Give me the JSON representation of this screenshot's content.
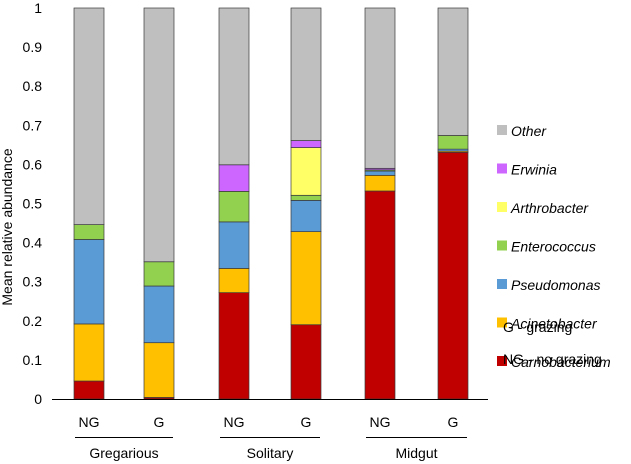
{
  "chart_data": {
    "type": "bar",
    "stacked": true,
    "title": "",
    "xlabel": "",
    "ylabel": "Mean relative abundance",
    "ylim": [
      0,
      1
    ],
    "yticks": [
      "0",
      "0.1",
      "0.2",
      "0.3",
      "0.4",
      "0.5",
      "0.6",
      "0.7",
      "0.8",
      "0.9",
      "1"
    ],
    "categories": [
      "NG",
      "G",
      "NG",
      "G",
      "NG",
      "G"
    ],
    "groups": [
      {
        "label": "Gregarious",
        "bars": [
          0,
          1
        ]
      },
      {
        "label": "Solitary",
        "bars": [
          2,
          3
        ]
      },
      {
        "label": "Midgut",
        "bars": [
          4,
          5
        ]
      }
    ],
    "series": [
      {
        "name": "Carnobacterium",
        "color": "#c00000",
        "values": [
          0.046,
          0.004,
          0.272,
          0.19,
          0.532,
          0.631
        ]
      },
      {
        "name": "Acinetobacter",
        "color": "#ffc000",
        "values": [
          0.146,
          0.14,
          0.062,
          0.238,
          0.04,
          0.003
        ]
      },
      {
        "name": "Pseudomonas",
        "color": "#5b9bd5",
        "values": [
          0.216,
          0.145,
          0.119,
          0.08,
          0.011,
          0.005
        ]
      },
      {
        "name": "Enterococcus",
        "color": "#92d050",
        "values": [
          0.038,
          0.062,
          0.078,
          0.013,
          0.003,
          0.035
        ]
      },
      {
        "name": "Arthrobacter",
        "color": "#ffff66",
        "values": [
          0.0,
          0.0,
          0.0,
          0.122,
          0.0,
          0.0
        ]
      },
      {
        "name": "Erwinia",
        "color": "#cc66ff",
        "values": [
          0.0,
          0.0,
          0.068,
          0.018,
          0.004,
          0.0
        ]
      },
      {
        "name": "Other",
        "color": "#bfbfbf",
        "values": [
          0.554,
          0.649,
          0.401,
          0.339,
          0.41,
          0.326
        ]
      }
    ],
    "legend": {
      "placement": "right",
      "order": [
        "Other",
        "Erwinia",
        "Arthrobacter",
        "Enterococcus",
        "Pseudomonas",
        "Acinetobacter",
        "Carnobacterium"
      ]
    },
    "notes": [
      "G - grazing",
      "NG - no grazing"
    ]
  }
}
